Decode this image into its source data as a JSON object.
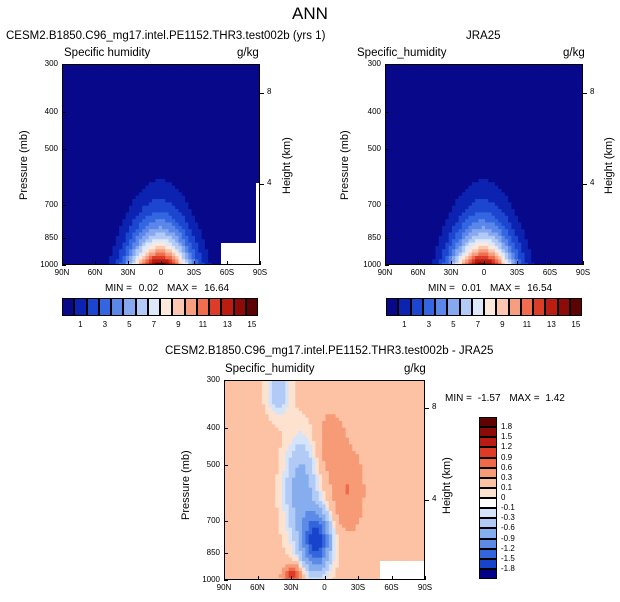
{
  "title": "ANN",
  "colors": {
    "seq": [
      "#08088a",
      "#0c22b0",
      "#1c46cf",
      "#3366e0",
      "#5b86ea",
      "#86a8f0",
      "#b2caf6",
      "#dde8fb",
      "#fde8dc",
      "#fbc7b0",
      "#f79e7f",
      "#f06e4f",
      "#dc3d28",
      "#bb1d12",
      "#8e0b08",
      "#5e0303"
    ],
    "div": [
      "#020286",
      "#0a1fb0",
      "#1844cc",
      "#3366dd",
      "#5c8ae6",
      "#86aeef",
      "#b2cbf6",
      "#d6e4fa",
      "#ffffff",
      "#fde2cf",
      "#fcc2a3",
      "#f79a76",
      "#f06a49",
      "#de3a25",
      "#ba1b12",
      "#8c0b07",
      "#600303"
    ]
  },
  "chart_data": [
    {
      "id": "model",
      "type": "contour",
      "title": "CESM2.B1850.C96_mg17.intel.PE1152.THR3.test002b (yrs 1)",
      "subtitle_left": "Specific humidity",
      "subtitle_right": "g/kg",
      "ylabel": "Pressure (mb)",
      "ylabel_right": "Height (km)",
      "x_ticks": [
        "90N",
        "60N",
        "30N",
        "0",
        "30S",
        "60S",
        "90S"
      ],
      "y_ticks": [
        "300",
        "400",
        "500",
        "700",
        "850",
        "1000"
      ],
      "y_ticks_right": [
        "8",
        "4"
      ],
      "stats": {
        "min_label": "MIN =",
        "min": "0.02",
        "max_label": "MAX =",
        "max": "16.64"
      },
      "colorbar": {
        "labels": [
          "1",
          "3",
          "5",
          "7",
          "9",
          "11",
          "13",
          "15"
        ]
      },
      "max_value": 16.64
    },
    {
      "id": "obs",
      "type": "contour",
      "title": "JRA25",
      "subtitle_left": "Specific_humidity",
      "subtitle_right": "g/kg",
      "ylabel": "Pressure (mb)",
      "ylabel_right": "Height (km)",
      "x_ticks": [
        "90N",
        "60N",
        "30N",
        "0",
        "30S",
        "60S",
        "90S"
      ],
      "y_ticks": [
        "300",
        "400",
        "500",
        "700",
        "850",
        "1000"
      ],
      "y_ticks_right": [
        "8",
        "4"
      ],
      "stats": {
        "min_label": "MIN =",
        "min": "0.01",
        "max_label": "MAX =",
        "max": "16.54"
      },
      "colorbar": {
        "labels": [
          "1",
          "3",
          "5",
          "7",
          "9",
          "11",
          "13",
          "15"
        ]
      },
      "max_value": 16.54
    },
    {
      "id": "diff",
      "type": "contour",
      "title": "CESM2.B1850.C96_mg17.intel.PE1152.THR3.test002b - JRA25",
      "subtitle_left": "Specific_humidity",
      "subtitle_right": "g/kg",
      "ylabel": "Pressure (mb)",
      "ylabel_right": "Height (km)",
      "x_ticks": [
        "90N",
        "60N",
        "30N",
        "0",
        "30S",
        "60S",
        "90S"
      ],
      "y_ticks": [
        "300",
        "400",
        "500",
        "700",
        "850",
        "1000"
      ],
      "y_ticks_right": [
        "8",
        "4"
      ],
      "stats": {
        "min_label": "MIN =",
        "min": "-1.57",
        "max_label": "MAX =",
        "max": "1.42"
      },
      "colorbar": {
        "labels": [
          "1.8",
          "1.5",
          "1.2",
          "0.9",
          "0.6",
          "0.3",
          "0.1",
          "0",
          "-0.1",
          "-0.3",
          "-0.6",
          "-0.9",
          "-1.2",
          "-1.5",
          "-1.8"
        ]
      }
    }
  ]
}
